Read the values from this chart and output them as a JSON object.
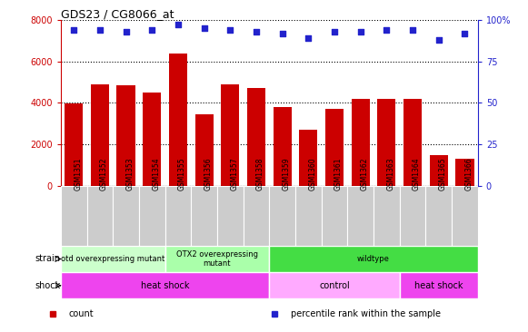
{
  "title": "GDS23 / CG8066_at",
  "samples": [
    "GSM1351",
    "GSM1352",
    "GSM1353",
    "GSM1354",
    "GSM1355",
    "GSM1356",
    "GSM1357",
    "GSM1358",
    "GSM1359",
    "GSM1360",
    "GSM1361",
    "GSM1362",
    "GSM1363",
    "GSM1364",
    "GSM1365",
    "GSM1366"
  ],
  "counts": [
    3980,
    4900,
    4850,
    4480,
    6380,
    3440,
    4880,
    4700,
    3800,
    2700,
    3720,
    4200,
    4180,
    4200,
    1480,
    1320
  ],
  "percentiles": [
    94,
    94,
    93,
    94,
    97,
    95,
    94,
    93,
    92,
    89,
    93,
    93,
    94,
    94,
    88,
    92
  ],
  "bar_color": "#cc0000",
  "dot_color": "#2222cc",
  "ylim_left": [
    0,
    8000
  ],
  "ylim_right": [
    0,
    100
  ],
  "yticks_left": [
    0,
    2000,
    4000,
    6000,
    8000
  ],
  "yticks_right": [
    0,
    25,
    50,
    75,
    100
  ],
  "ytick_labels_right": [
    "0",
    "25",
    "50",
    "75",
    "100%"
  ],
  "strain_regions": [
    {
      "label": "otd overexpressing mutant",
      "start": 0,
      "end": 4,
      "color": "#ccffcc"
    },
    {
      "label": "OTX2 overexpressing\nmutant",
      "start": 4,
      "end": 8,
      "color": "#aaffaa"
    },
    {
      "label": "wildtype",
      "start": 8,
      "end": 16,
      "color": "#44dd44"
    }
  ],
  "shock_regions": [
    {
      "label": "heat shock",
      "start": 0,
      "end": 8,
      "color": "#ee44ee"
    },
    {
      "label": "control",
      "start": 8,
      "end": 13,
      "color": "#ffaaff"
    },
    {
      "label": "heat shock",
      "start": 13,
      "end": 16,
      "color": "#ee44ee"
    }
  ],
  "legend_items": [
    {
      "label": "count",
      "color": "#cc0000"
    },
    {
      "label": "percentile rank within the sample",
      "color": "#2222cc"
    }
  ],
  "chart_bg": "#ffffff",
  "tick_bg": "#cccccc",
  "left_axis_color": "#cc0000",
  "right_axis_color": "#2222cc"
}
